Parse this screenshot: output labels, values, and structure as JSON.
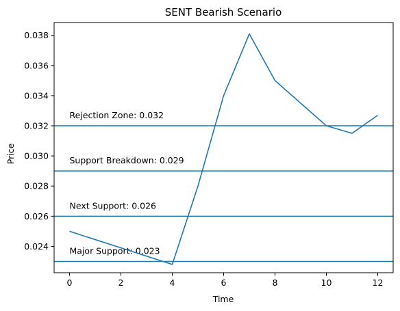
{
  "chart_data": {
    "type": "line",
    "title": "SENT Bearish Scenario",
    "xlabel": "Time",
    "ylabel": "Price",
    "xlim": [
      -0.6,
      12.6
    ],
    "ylim": [
      0.02225,
      0.03885
    ],
    "xticks": [
      0,
      2,
      4,
      6,
      8,
      10,
      12
    ],
    "yticks": [
      0.024,
      0.026,
      0.028,
      0.03,
      0.032,
      0.034,
      0.036,
      0.038
    ],
    "xtick_labels": [
      "0",
      "2",
      "4",
      "6",
      "8",
      "10",
      "12"
    ],
    "ytick_labels": [
      "0.024",
      "0.026",
      "0.028",
      "0.030",
      "0.032",
      "0.034",
      "0.036",
      "0.038"
    ],
    "grid": false,
    "series": [
      {
        "color": "#1f77b4",
        "x": [
          0,
          4,
          5,
          6,
          7,
          8,
          10,
          11,
          12
        ],
        "y": [
          0.025,
          0.0228,
          0.028,
          0.034,
          0.0381,
          0.035,
          0.032,
          0.0315,
          0.0327
        ]
      }
    ],
    "hlines": [
      {
        "y": 0.032,
        "label": "Rejection Zone: 0.032",
        "color": "#1f77b4"
      },
      {
        "y": 0.029,
        "label": "Support Breakdown: 0.029",
        "color": "#1f77b4"
      },
      {
        "y": 0.026,
        "label": "Next Support: 0.026",
        "color": "#1f77b4"
      },
      {
        "y": 0.023,
        "label": "Major Support: 0.023",
        "color": "#1f77b4"
      }
    ],
    "annotation_x": 0
  }
}
